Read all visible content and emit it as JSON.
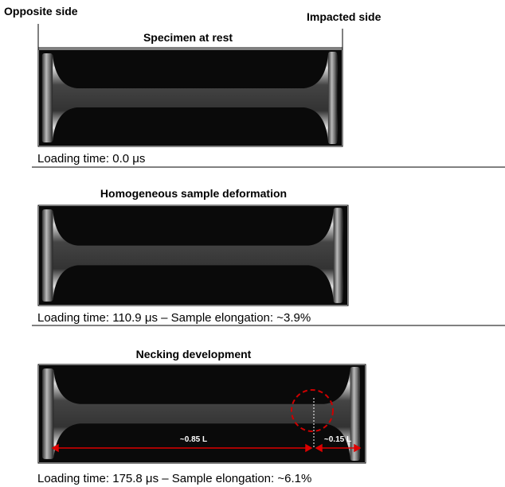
{
  "labels": {
    "opposite": "Opposite side",
    "impacted": "Impacted side"
  },
  "panels": [
    {
      "title": "Specimen at rest",
      "caption": "Loading time: 0.0 μs"
    },
    {
      "title": "Homogeneous sample deformation",
      "caption": "Loading time: 110.9 μs – Sample elongation: ~3.9%"
    },
    {
      "title": "Necking development",
      "caption": "Loading time: 175.8 μs – Sample elongation: ~6.1%"
    }
  ],
  "annotations": {
    "long": "~0.85 L",
    "short": "~0.15 L"
  }
}
